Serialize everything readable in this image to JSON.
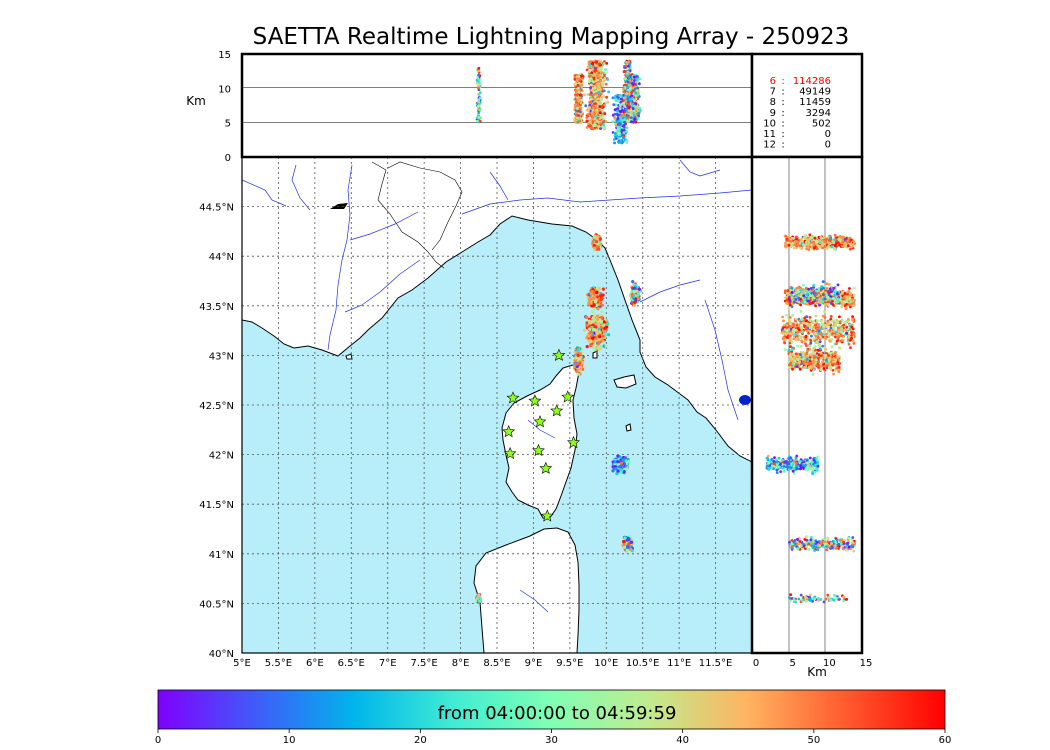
{
  "title": "SAETTA Realtime Lightning Mapping Array - 250923",
  "altitude_unit": "Km",
  "top_altitude_ticks": [
    "15",
    "10",
    "5",
    "0"
  ],
  "side_altitude_ticks": [
    "0",
    "5",
    "10",
    "15"
  ],
  "lon_ticks": [
    "5°E",
    "5.5°E",
    "6°E",
    "6.5°E",
    "7°E",
    "7.5°E",
    "8°E",
    "8.5°E",
    "9°E",
    "9.5°E",
    "10°E",
    "10.5°E",
    "11°E",
    "11.5°E"
  ],
  "lat_ticks": [
    "44.5°N",
    "44°N",
    "43.5°N",
    "43°N",
    "42.5°N",
    "42°N",
    "41.5°N",
    "41°N",
    "40.5°N",
    "40°N"
  ],
  "station_counts": [
    {
      "stations": "6",
      "count": "114286",
      "highlight": true
    },
    {
      "stations": "7",
      "count": "49149",
      "highlight": false
    },
    {
      "stations": "8",
      "count": "11459",
      "highlight": false
    },
    {
      "stations": "9",
      "count": "3294",
      "highlight": false
    },
    {
      "stations": "10",
      "count": "502",
      "highlight": false
    },
    {
      "stations": "11",
      "count": "0",
      "highlight": false
    },
    {
      "stations": "12",
      "count": "0",
      "highlight": false
    }
  ],
  "colorbar": {
    "label": "from 04:00:00 to 04:59:59",
    "ticks": [
      "0",
      "10",
      "20",
      "30",
      "40",
      "50",
      "60"
    ],
    "min": 0,
    "max": 60,
    "colors": [
      "#7f00ff",
      "#3f5cf9",
      "#00b5eb",
      "#40ecd4",
      "#80ffb4",
      "#c1eb8f",
      "#ffb360",
      "#ff5a2e",
      "#ff0000"
    ]
  },
  "colors": {
    "sea": "#b7eefa",
    "land": "#ffffff",
    "rivers": "#2233dd",
    "highlight_text": "#ff0000",
    "station_marker": "#8cff1e"
  },
  "map_extent": {
    "lon_min": 5,
    "lon_max": 12,
    "lat_min": 40,
    "lat_max": 45
  },
  "stations": [
    {
      "lon": 9.35,
      "lat": 43.0
    },
    {
      "lon": 8.72,
      "lat": 42.57
    },
    {
      "lon": 9.02,
      "lat": 42.54
    },
    {
      "lon": 9.47,
      "lat": 42.58
    },
    {
      "lon": 9.09,
      "lat": 42.33
    },
    {
      "lon": 9.32,
      "lat": 42.44
    },
    {
      "lon": 8.66,
      "lat": 42.23
    },
    {
      "lon": 9.55,
      "lat": 42.12
    },
    {
      "lon": 8.68,
      "lat": 42.01
    },
    {
      "lon": 9.07,
      "lat": 42.04
    },
    {
      "lon": 9.17,
      "lat": 41.86
    },
    {
      "lon": 9.19,
      "lat": 41.38
    }
  ],
  "lightning_clusters": [
    {
      "lon": 9.87,
      "lat": 44.14,
      "alt_min": 4.5,
      "alt_max": 14,
      "spread_lon": 0.06,
      "spread_lat": 0.09,
      "density": "high"
    },
    {
      "lon": 9.85,
      "lat": 43.58,
      "alt_min": 4.5,
      "alt_max": 14,
      "spread_lon": 0.12,
      "spread_lat": 0.12,
      "density": "high"
    },
    {
      "lon": 10.4,
      "lat": 43.62,
      "alt_min": 5,
      "alt_max": 12,
      "spread_lon": 0.08,
      "spread_lat": 0.15,
      "density": "medium"
    },
    {
      "lon": 9.87,
      "lat": 43.25,
      "alt_min": 4,
      "alt_max": 14,
      "spread_lon": 0.18,
      "spread_lat": 0.22,
      "density": "high"
    },
    {
      "lon": 9.62,
      "lat": 42.95,
      "alt_min": 5,
      "alt_max": 12,
      "spread_lon": 0.07,
      "spread_lat": 0.15,
      "density": "high"
    },
    {
      "lon": 10.2,
      "lat": 41.9,
      "alt_min": 2,
      "alt_max": 9,
      "spread_lon": 0.14,
      "spread_lat": 0.1,
      "density": "medium"
    },
    {
      "lon": 10.3,
      "lat": 41.1,
      "alt_min": 5,
      "alt_max": 14,
      "spread_lon": 0.08,
      "spread_lat": 0.1,
      "density": "medium"
    },
    {
      "lon": 8.25,
      "lat": 40.55,
      "alt_min": 5,
      "alt_max": 13,
      "spread_lon": 0.04,
      "spread_lat": 0.05,
      "density": "low"
    }
  ]
}
